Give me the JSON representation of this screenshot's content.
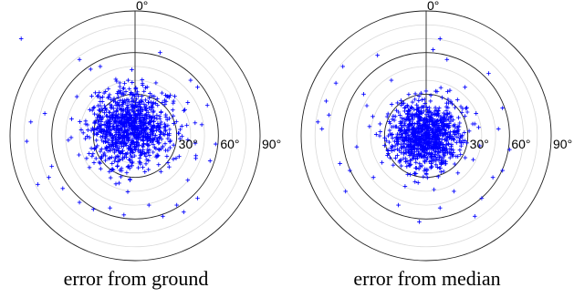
{
  "chart_data": [
    {
      "type": "scatter",
      "projection": "polar",
      "caption": "error from ground",
      "r_ticks": [
        "30°",
        "60°",
        "90°"
      ],
      "r_values": [
        30,
        60,
        90
      ],
      "angle_label": "0°",
      "minor_ring_every": 10,
      "marker": "+",
      "marker_color": "#0000ff",
      "center_offset": [
        -3,
        5
      ],
      "sigma": [
        15,
        14
      ],
      "n_points": 1000,
      "outliers": [
        [
          -82,
          70
        ],
        [
          -75,
          10
        ],
        [
          -78,
          -4
        ],
        [
          -65,
          16
        ],
        [
          -62,
          -30
        ],
        [
          -70,
          -35
        ],
        [
          -60,
          -22
        ],
        [
          -5,
          40
        ],
        [
          -12,
          32
        ],
        [
          18,
          60
        ],
        [
          48,
          8
        ],
        [
          52,
          22
        ],
        [
          54,
          -18
        ],
        [
          58,
          -6
        ],
        [
          38,
          -32
        ],
        [
          35,
          -55
        ],
        [
          -18,
          -52
        ],
        [
          -30,
          -53
        ],
        [
          10,
          -50
        ],
        [
          -40,
          -48
        ],
        [
          -52,
          -38
        ],
        [
          -32,
          48
        ],
        [
          -40,
          55
        ],
        [
          -25,
          50
        ],
        [
          40,
          40
        ],
        [
          45,
          35
        ],
        [
          20,
          -58
        ],
        [
          -8,
          -57
        ],
        [
          30,
          -50
        ],
        [
          45,
          -45
        ]
      ]
    },
    {
      "type": "scatter",
      "projection": "polar",
      "caption": "error from median",
      "r_ticks": [
        "30°",
        "60°",
        "90°"
      ],
      "r_values": [
        30,
        60,
        90
      ],
      "angle_label": "0°",
      "minor_ring_every": 10,
      "marker": "+",
      "marker_color": "#0000ff",
      "center_offset": [
        0,
        0
      ],
      "sigma": [
        13,
        12
      ],
      "n_points": 1000,
      "outliers": [
        [
          10,
          70
        ],
        [
          -35,
          58
        ],
        [
          -60,
          50
        ],
        [
          -65,
          38
        ],
        [
          -72,
          25
        ],
        [
          -78,
          10
        ],
        [
          -75,
          5
        ],
        [
          -70,
          15
        ],
        [
          -55,
          -25
        ],
        [
          -38,
          -30
        ],
        [
          -58,
          -40
        ],
        [
          45,
          45
        ],
        [
          55,
          20
        ],
        [
          52,
          5
        ],
        [
          60,
          -10
        ],
        [
          40,
          -45
        ],
        [
          35,
          -58
        ],
        [
          -5,
          -62
        ],
        [
          -20,
          -50
        ],
        [
          10,
          -52
        ],
        [
          20,
          -40
        ],
        [
          -25,
          40
        ],
        [
          28,
          35
        ],
        [
          48,
          -30
        ],
        [
          -45,
          30
        ],
        [
          -50,
          -8
        ],
        [
          -62,
          -20
        ],
        [
          5,
          62
        ],
        [
          15,
          55
        ],
        [
          55,
          -25
        ]
      ]
    }
  ]
}
